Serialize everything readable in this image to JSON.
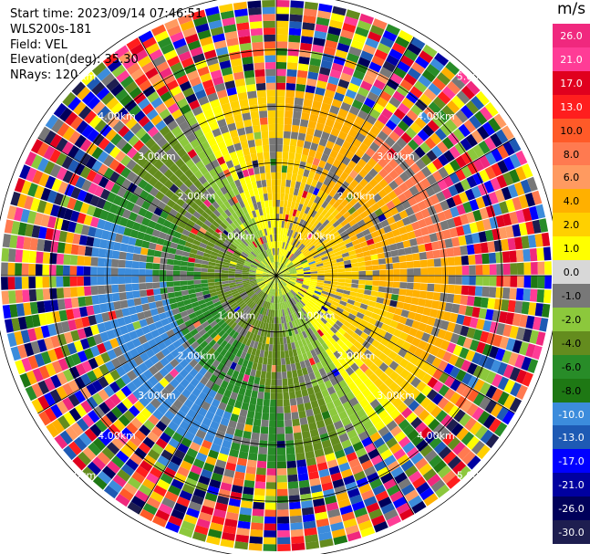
{
  "info": {
    "start_time": "Start time: 2023/09/14 07:46:51",
    "station": "WLS200s-181",
    "field": "Field: VEL",
    "elevation": "Elevation(deg): 35.30",
    "nrays": "NRays: 120"
  },
  "colorbar": {
    "unit": "m/s",
    "ticks": [
      "26.0",
      "21.0",
      "17.0",
      "13.0",
      "10.0",
      "8.0",
      "6.0",
      "4.0",
      "2.0",
      "1.0",
      "0.0",
      "-1.0",
      "-2.0",
      "-4.0",
      "-6.0",
      "-8.0",
      "-10.0",
      "-13.0",
      "-17.0",
      "-21.0",
      "-26.0",
      "-30.0"
    ],
    "colors": [
      "#f0287e",
      "#ff3c96",
      "#e0001e",
      "#ff1e1e",
      "#ff5a28",
      "#ff7a50",
      "#ff9a60",
      "#ffb000",
      "#ffd000",
      "#ffff00",
      "#d8d8d8",
      "#787878",
      "#8cc83c",
      "#648c1e",
      "#288c28",
      "#1e7814",
      "#3c8cdc",
      "#1e5ab4",
      "#0000ff",
      "#0000a0",
      "#00005a",
      "#1e1e50"
    ]
  },
  "chart_data": {
    "type": "heatmap",
    "title": "",
    "field": "VEL",
    "units": "m/s",
    "nrays": 120,
    "elevation_deg": 35.3,
    "range_rings_km": [
      1.0,
      2.0,
      3.0,
      4.0,
      5.0
    ],
    "range_ring_labels": [
      "1.00km",
      "2.00km",
      "3.00km",
      "4.00km",
      "5.00km",
      "1.00km",
      "2.00km",
      "3.00km",
      "4.00km",
      "5.00km",
      "1.00km",
      "2.00km",
      "3.00km",
      "4.00km",
      "5.00km",
      "1.00km",
      "2.00km",
      "3.00km",
      "4.00km",
      "5.00km"
    ],
    "velocity_range": [
      -30.0,
      26.0
    ],
    "grid": true
  }
}
